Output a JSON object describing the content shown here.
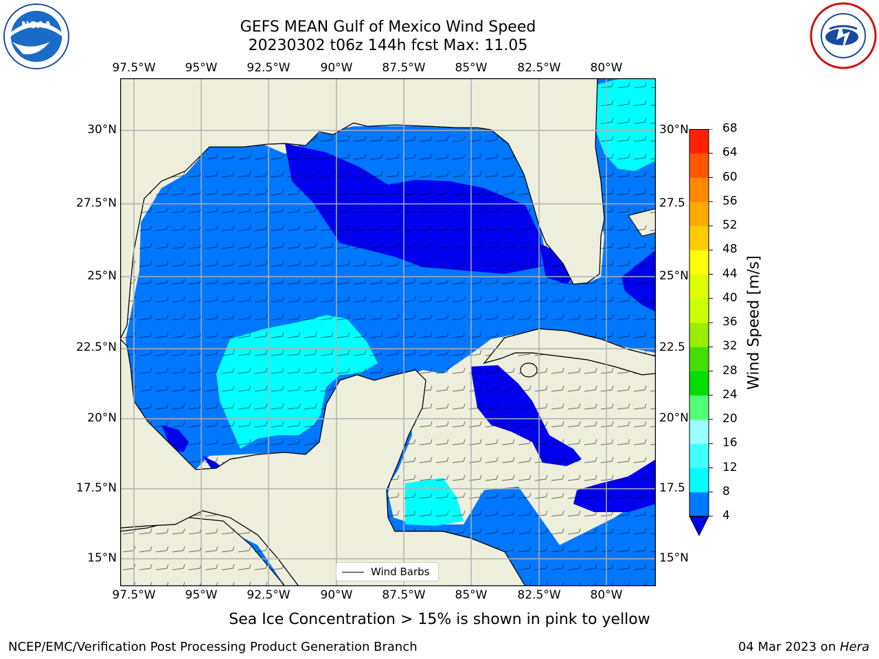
{
  "title_line1": "GEFS MEAN Gulf of Mexico Wind Speed",
  "title_line2": "20230302 t06z 144h fcst   Max: 11.05",
  "lon_ticks": [
    "97.5°W",
    "95°W",
    "92.5°W",
    "90°W",
    "87.5°W",
    "85°W",
    "82.5°W",
    "80°W"
  ],
  "lat_ticks_left": [
    "30°N",
    "27.5°N",
    "25°N",
    "22.5°N",
    "20°N",
    "17.5°N",
    "15°N"
  ],
  "lat_ticks_right": [
    "30°N",
    "27.5",
    "25°N",
    "22.5",
    "20°N",
    "17.5",
    "15°N"
  ],
  "colorbar": {
    "title": "Wind Speed [m/s]",
    "levels": [
      4,
      8,
      12,
      16,
      20,
      24,
      28,
      32,
      36,
      40,
      44,
      48,
      52,
      56,
      60,
      64,
      68
    ],
    "labels": [
      "4",
      "8",
      "12",
      "16",
      "20",
      "24",
      "28",
      "32",
      "36",
      "40",
      "44",
      "48",
      "52",
      "56",
      "60",
      "64",
      "68"
    ],
    "colors": [
      "#0077ff",
      "#00ffff",
      "#40ffff",
      "#99ffff",
      "#55ff77",
      "#00dd00",
      "#44dd00",
      "#99ee00",
      "#ccff00",
      "#ddff00",
      "#ffff00",
      "#ffcc00",
      "#ffaa00",
      "#ff8800",
      "#ff5500",
      "#ff2200"
    ],
    "under_color": "#0000ee"
  },
  "legend_label": "Wind Barbs",
  "caption": "Sea Ice Concentration > 15% is shown in pink to yellow",
  "footer_left": "NCEP/EMC/Verification Post Processing Product Generation Branch",
  "footer_date": "04 Mar 2023 on ",
  "footer_host": "Hera",
  "colors": {
    "land": "#eeeedd",
    "wind_4_8": "#0077ff",
    "wind_8_12": "#00ffff",
    "wind_below_4": "#0000ee",
    "grid": "#b0b0b0"
  },
  "logos": {
    "left": "noaa-logo",
    "right": "nws-logo"
  }
}
